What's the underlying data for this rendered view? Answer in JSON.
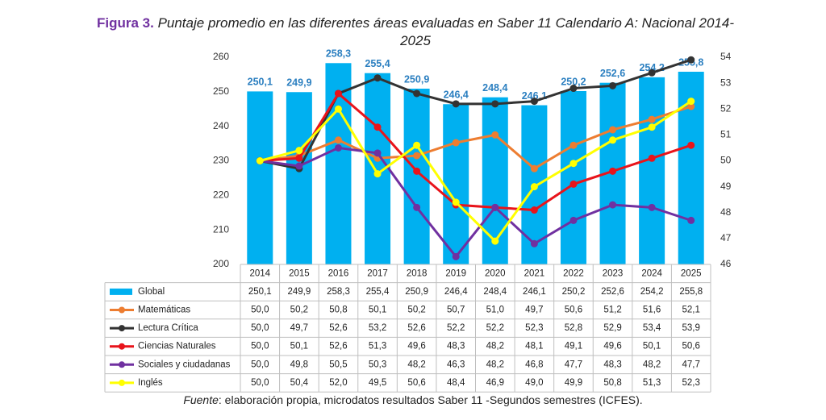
{
  "chart_data": {
    "type": "bar_line",
    "title_label": "Figura 3.",
    "title": "Puntaje promedio en las diferentes áreas evaluadas en Saber 11 Calendario A: Nacional 2014-2025",
    "source_label": "Fuente",
    "source": ": elaboración propia, microdatos resultados Saber 11 -Segundos semestres (ICFES).",
    "categories": [
      "2014",
      "2015",
      "2016",
      "2017",
      "2018",
      "2019",
      "2020",
      "2021",
      "2022",
      "2023",
      "2024",
      "2025"
    ],
    "ylim": [
      200,
      260
    ],
    "yticks": [
      200,
      210,
      220,
      230,
      240,
      250,
      260
    ],
    "y2lim": [
      46,
      54
    ],
    "y2ticks": [
      46,
      47,
      48,
      49,
      50,
      51,
      52,
      53,
      54
    ],
    "grid": false,
    "data_table": true,
    "series": [
      {
        "name": "Global",
        "type": "bar",
        "color": "#00b0f0",
        "values": [
          250.1,
          249.9,
          258.3,
          255.4,
          250.9,
          246.4,
          248.4,
          246.1,
          250.2,
          252.6,
          254.2,
          255.8
        ],
        "value_labels": [
          "250,1",
          "249,9",
          "258,3",
          "255,4",
          "250,9",
          "246,4",
          "248,4",
          "246,1",
          "250,2",
          "252,6",
          "254,2",
          "255,8"
        ]
      },
      {
        "name": "Matemáticas",
        "type": "line",
        "axis": "y2",
        "color": "#ed7d31",
        "values": [
          50.0,
          50.2,
          50.8,
          50.1,
          50.2,
          50.7,
          51.0,
          49.7,
          50.6,
          51.2,
          51.6,
          52.1
        ],
        "value_labels": [
          "50,0",
          "50,2",
          "50,8",
          "50,1",
          "50,2",
          "50,7",
          "51,0",
          "49,7",
          "50,6",
          "51,2",
          "51,6",
          "52,1"
        ]
      },
      {
        "name": "Lectura Crítica",
        "type": "line",
        "axis": "y2",
        "color": "#333333",
        "values": [
          50.0,
          49.7,
          52.6,
          53.2,
          52.6,
          52.2,
          52.2,
          52.3,
          52.8,
          52.9,
          53.4,
          53.9
        ],
        "value_labels": [
          "50,0",
          "49,7",
          "52,6",
          "53,2",
          "52,6",
          "52,2",
          "52,2",
          "52,3",
          "52,8",
          "52,9",
          "53,4",
          "53,9"
        ]
      },
      {
        "name": "Ciencias Naturales",
        "type": "line",
        "axis": "y2",
        "color": "#e8141b",
        "values": [
          50.0,
          50.1,
          52.6,
          51.3,
          49.6,
          48.3,
          48.2,
          48.1,
          49.1,
          49.6,
          50.1,
          50.6
        ],
        "value_labels": [
          "50,0",
          "50,1",
          "52,6",
          "51,3",
          "49,6",
          "48,3",
          "48,2",
          "48,1",
          "49,1",
          "49,6",
          "50,1",
          "50,6"
        ]
      },
      {
        "name": "Sociales y ciudadanas",
        "type": "line",
        "axis": "y2",
        "color": "#7030a0",
        "values": [
          50.0,
          49.8,
          50.5,
          50.3,
          48.2,
          46.3,
          48.2,
          46.8,
          47.7,
          48.3,
          48.2,
          47.7
        ],
        "value_labels": [
          "50,0",
          "49,8",
          "50,5",
          "50,3",
          "48,2",
          "46,3",
          "48,2",
          "46,8",
          "47,7",
          "48,3",
          "48,2",
          "47,7"
        ]
      },
      {
        "name": "Inglés",
        "type": "line",
        "axis": "y2",
        "color": "#ffff00",
        "values": [
          50.0,
          50.4,
          52.0,
          49.5,
          50.6,
          48.4,
          46.9,
          49.0,
          49.9,
          50.8,
          51.3,
          52.3
        ],
        "value_labels": [
          "50,0",
          "50,4",
          "52,0",
          "49,5",
          "50,6",
          "48,4",
          "46,9",
          "49,0",
          "49,9",
          "50,8",
          "51,3",
          "52,3"
        ]
      }
    ]
  }
}
